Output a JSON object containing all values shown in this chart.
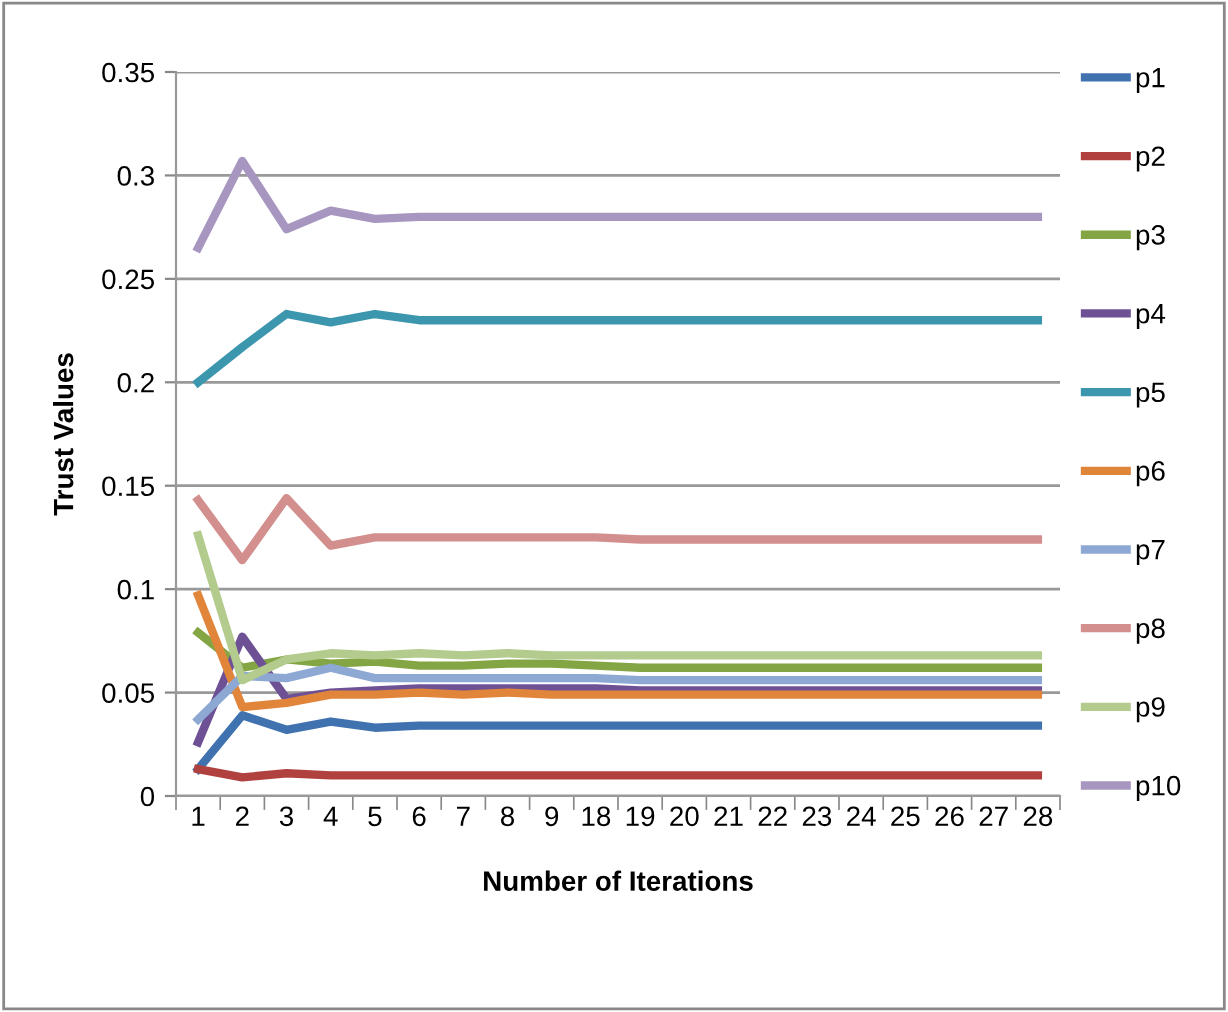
{
  "chart_data": {
    "type": "line",
    "xlabel": "Number of Iterations",
    "ylabel": "Trust Values",
    "categories": [
      "1",
      "2",
      "3",
      "4",
      "5",
      "6",
      "7",
      "8",
      "9",
      "18",
      "19",
      "20",
      "21",
      "22",
      "23",
      "24",
      "25",
      "26",
      "27",
      "28"
    ],
    "ylim": [
      0,
      0.35
    ],
    "yticks": [
      {
        "value": 0,
        "label": "0"
      },
      0.05,
      {
        "value": 0.1,
        "label": "0.1"
      },
      0.15,
      {
        "value": 0.2,
        "label": "0.2"
      },
      0.25,
      {
        "value": 0.3,
        "label": "0.3"
      },
      0.35
    ],
    "grid": "y",
    "legend": "right",
    "marker": "none",
    "line_style": "solid",
    "series": [
      {
        "name": "p1",
        "color": "#4172b0",
        "values": [
          0.013,
          0.039,
          0.032,
          0.036,
          0.033,
          0.034,
          0.034,
          0.034,
          0.034,
          0.034,
          0.034,
          0.034,
          0.034,
          0.034,
          0.034,
          0.034,
          0.034,
          0.034,
          0.034,
          0.034
        ]
      },
      {
        "name": "p2",
        "color": "#b0413e",
        "values": [
          0.013,
          0.009,
          0.011,
          0.01,
          0.01,
          0.01,
          0.01,
          0.01,
          0.01,
          0.01,
          0.01,
          0.01,
          0.01,
          0.01,
          0.01,
          0.01,
          0.01,
          0.01,
          0.01,
          0.01
        ]
      },
      {
        "name": "p3",
        "color": "#84a544",
        "values": [
          0.079,
          0.062,
          0.066,
          0.064,
          0.065,
          0.063,
          0.063,
          0.064,
          0.064,
          0.063,
          0.062,
          0.062,
          0.062,
          0.062,
          0.062,
          0.062,
          0.062,
          0.062,
          0.062,
          0.062
        ]
      },
      {
        "name": "p4",
        "color": "#6e5195",
        "values": [
          0.026,
          0.077,
          0.047,
          0.05,
          0.051,
          0.052,
          0.052,
          0.052,
          0.052,
          0.052,
          0.051,
          0.051,
          0.051,
          0.051,
          0.051,
          0.051,
          0.051,
          0.051,
          0.051,
          0.051
        ]
      },
      {
        "name": "p5",
        "color": "#3c96ae",
        "values": [
          0.2,
          0.217,
          0.233,
          0.229,
          0.233,
          0.23,
          0.23,
          0.23,
          0.23,
          0.23,
          0.23,
          0.23,
          0.23,
          0.23,
          0.23,
          0.23,
          0.23,
          0.23,
          0.23,
          0.23
        ]
      },
      {
        "name": "p6",
        "color": "#e1853a",
        "values": [
          0.097,
          0.043,
          0.045,
          0.049,
          0.049,
          0.05,
          0.049,
          0.05,
          0.049,
          0.049,
          0.049,
          0.049,
          0.049,
          0.049,
          0.049,
          0.049,
          0.049,
          0.049,
          0.049,
          0.049
        ]
      },
      {
        "name": "p7",
        "color": "#8ea8d4",
        "values": [
          0.037,
          0.058,
          0.057,
          0.062,
          0.057,
          0.057,
          0.057,
          0.057,
          0.057,
          0.057,
          0.056,
          0.056,
          0.056,
          0.056,
          0.056,
          0.056,
          0.056,
          0.056,
          0.056,
          0.056
        ]
      },
      {
        "name": "p8",
        "color": "#d28f8d",
        "values": [
          0.143,
          0.114,
          0.144,
          0.121,
          0.125,
          0.125,
          0.125,
          0.125,
          0.125,
          0.125,
          0.124,
          0.124,
          0.124,
          0.124,
          0.124,
          0.124,
          0.124,
          0.124,
          0.124,
          0.124
        ]
      },
      {
        "name": "p9",
        "color": "#b3cc8e",
        "values": [
          0.126,
          0.056,
          0.066,
          0.069,
          0.068,
          0.069,
          0.068,
          0.069,
          0.068,
          0.068,
          0.068,
          0.068,
          0.068,
          0.068,
          0.068,
          0.068,
          0.068,
          0.068,
          0.068,
          0.068
        ]
      },
      {
        "name": "p10",
        "color": "#a797c0",
        "values": [
          0.265,
          0.307,
          0.274,
          0.283,
          0.279,
          0.28,
          0.28,
          0.28,
          0.28,
          0.28,
          0.28,
          0.28,
          0.28,
          0.28,
          0.28,
          0.28,
          0.28,
          0.28,
          0.28,
          0.28
        ]
      }
    ]
  }
}
